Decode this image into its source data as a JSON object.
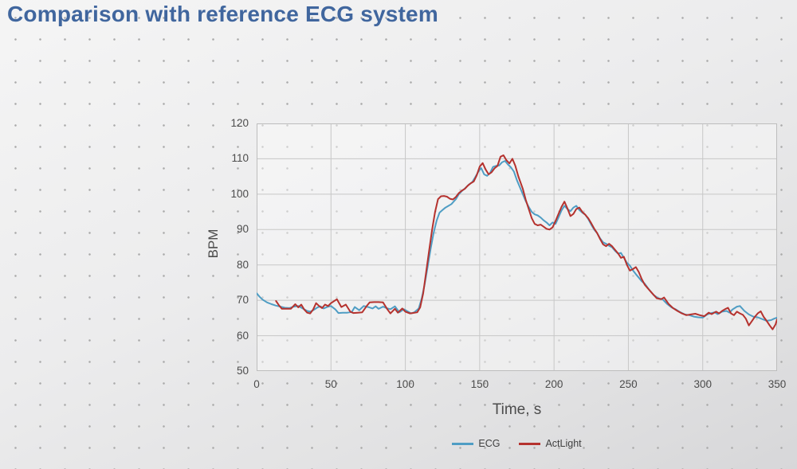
{
  "title": "Comparison with reference ECG system",
  "chart_data": {
    "type": "line",
    "title": "",
    "xlabel": "Time, s",
    "ylabel": "BPM",
    "xlim": [
      0,
      350
    ],
    "ylim": [
      50,
      120
    ],
    "x_ticks": [
      0,
      50,
      100,
      150,
      200,
      250,
      300,
      350
    ],
    "y_ticks": [
      50,
      60,
      70,
      80,
      90,
      100,
      110,
      120
    ],
    "grid": true,
    "legend_position": "bottom",
    "grid_color": "#c7c7c7",
    "series": [
      {
        "name": "ECG",
        "color": "#4f9dc4",
        "points": [
          [
            0,
            72
          ],
          [
            2,
            71
          ],
          [
            4,
            70.2
          ],
          [
            7,
            69.4
          ],
          [
            10,
            68.9
          ],
          [
            13,
            68.5
          ],
          [
            16,
            68.2
          ],
          [
            19,
            67.9
          ],
          [
            22,
            67.8
          ],
          [
            25,
            68.2
          ],
          [
            28,
            68.4
          ],
          [
            31,
            67.7
          ],
          [
            34,
            67
          ],
          [
            36,
            66.8
          ],
          [
            38,
            67.2
          ],
          [
            41,
            68
          ],
          [
            43,
            68.3
          ],
          [
            45,
            67.7
          ],
          [
            48,
            68.2
          ],
          [
            50,
            68.4
          ],
          [
            53,
            67.4
          ],
          [
            55,
            66.4
          ],
          [
            58,
            66.5
          ],
          [
            61,
            66.5
          ],
          [
            64,
            66.7
          ],
          [
            66,
            68.1
          ],
          [
            69,
            67.2
          ],
          [
            72,
            68.4
          ],
          [
            75,
            68.1
          ],
          [
            78,
            67.7
          ],
          [
            80,
            68.3
          ],
          [
            82,
            67.6
          ],
          [
            85,
            68.2
          ],
          [
            88,
            67.7
          ],
          [
            90,
            67.5
          ],
          [
            93,
            68.3
          ],
          [
            96,
            66.6
          ],
          [
            99,
            67.5
          ],
          [
            101,
            67
          ],
          [
            104,
            66.3
          ],
          [
            106,
            66.6
          ],
          [
            109,
            67.7
          ],
          [
            111,
            70.5
          ],
          [
            113,
            74.5
          ],
          [
            115,
            79.5
          ],
          [
            117,
            84.5
          ],
          [
            119,
            89
          ],
          [
            121,
            92.5
          ],
          [
            123,
            94.8
          ],
          [
            125,
            95.5
          ],
          [
            127,
            96.2
          ],
          [
            129,
            96.7
          ],
          [
            131,
            97.2
          ],
          [
            134,
            98.6
          ],
          [
            136,
            100
          ],
          [
            138,
            100.9
          ],
          [
            140,
            101.6
          ],
          [
            143,
            102.8
          ],
          [
            145,
            103.4
          ],
          [
            147,
            104.8
          ],
          [
            149,
            106.3
          ],
          [
            151,
            107.4
          ],
          [
            153,
            105.6
          ],
          [
            155,
            105.2
          ],
          [
            157,
            106
          ],
          [
            159,
            107.7
          ],
          [
            161,
            108
          ],
          [
            163,
            108.1
          ],
          [
            165,
            109
          ],
          [
            167,
            109.4
          ],
          [
            169,
            108.4
          ],
          [
            171,
            107.6
          ],
          [
            173,
            106.4
          ],
          [
            175,
            104
          ],
          [
            178,
            101
          ],
          [
            181,
            98
          ],
          [
            183,
            96.4
          ],
          [
            185,
            95
          ],
          [
            187,
            94.3
          ],
          [
            189,
            94
          ],
          [
            191,
            93.4
          ],
          [
            193,
            92.6
          ],
          [
            195,
            92
          ],
          [
            197,
            91.2
          ],
          [
            199,
            92
          ],
          [
            201,
            91.6
          ],
          [
            203,
            93.4
          ],
          [
            205,
            95.4
          ],
          [
            207,
            96.7
          ],
          [
            209,
            95.8
          ],
          [
            211,
            95.2
          ],
          [
            213,
            96.2
          ],
          [
            215,
            96.7
          ],
          [
            217,
            95.5
          ],
          [
            219,
            94.8
          ],
          [
            221,
            94.2
          ],
          [
            223,
            93
          ],
          [
            225,
            91.4
          ],
          [
            227,
            90
          ],
          [
            229,
            89
          ],
          [
            231,
            87.5
          ],
          [
            233,
            86.4
          ],
          [
            235,
            86
          ],
          [
            237,
            85.4
          ],
          [
            239,
            85
          ],
          [
            241,
            84
          ],
          [
            243,
            83.2
          ],
          [
            245,
            83.4
          ],
          [
            247,
            82
          ],
          [
            249,
            80.6
          ],
          [
            251,
            79.8
          ],
          [
            253,
            78.5
          ],
          [
            255,
            77.4
          ],
          [
            257,
            76.4
          ],
          [
            259,
            75.4
          ],
          [
            261,
            74.7
          ],
          [
            264,
            73
          ],
          [
            267,
            71.5
          ],
          [
            270,
            70.6
          ],
          [
            273,
            70.3
          ],
          [
            276,
            69
          ],
          [
            279,
            68
          ],
          [
            282,
            67.4
          ],
          [
            285,
            66.6
          ],
          [
            288,
            66
          ],
          [
            291,
            65.8
          ],
          [
            294,
            65.4
          ],
          [
            297,
            65.2
          ],
          [
            300,
            65.1
          ],
          [
            303,
            66
          ],
          [
            305,
            66.3
          ],
          [
            308,
            66.6
          ],
          [
            310,
            66.1
          ],
          [
            313,
            66.8
          ],
          [
            316,
            67
          ],
          [
            318,
            66.5
          ],
          [
            320,
            67.4
          ],
          [
            323,
            68.2
          ],
          [
            325,
            68.4
          ],
          [
            328,
            67
          ],
          [
            331,
            66
          ],
          [
            334,
            65.4
          ],
          [
            337,
            65.2
          ],
          [
            340,
            64.7
          ],
          [
            343,
            64.2
          ],
          [
            346,
            64.4
          ],
          [
            348,
            64.8
          ],
          [
            350,
            65.1
          ]
        ]
      },
      {
        "name": "ActLight",
        "color": "#b5322e",
        "points": [
          [
            13,
            69.8
          ],
          [
            15,
            68.6
          ],
          [
            17,
            67.6
          ],
          [
            20,
            67.6
          ],
          [
            23,
            67.6
          ],
          [
            26,
            68.9
          ],
          [
            28,
            68
          ],
          [
            30,
            68.8
          ],
          [
            32,
            67.4
          ],
          [
            34,
            66.5
          ],
          [
            36,
            66.3
          ],
          [
            38,
            67.4
          ],
          [
            40,
            69.2
          ],
          [
            42,
            68.4
          ],
          [
            44,
            67.8
          ],
          [
            46,
            68.8
          ],
          [
            48,
            68.4
          ],
          [
            50,
            69.2
          ],
          [
            54,
            70.3
          ],
          [
            57,
            68.1
          ],
          [
            60,
            68.8
          ],
          [
            63,
            66.8
          ],
          [
            65,
            66.4
          ],
          [
            68,
            66.5
          ],
          [
            71,
            66.6
          ],
          [
            74,
            68.4
          ],
          [
            76,
            69.4
          ],
          [
            79,
            69.5
          ],
          [
            82,
            69.5
          ],
          [
            85,
            69.4
          ],
          [
            88,
            67.4
          ],
          [
            90,
            66.3
          ],
          [
            93,
            67.6
          ],
          [
            95,
            66.5
          ],
          [
            98,
            67.7
          ],
          [
            100,
            66.8
          ],
          [
            103,
            66.3
          ],
          [
            105,
            66.4
          ],
          [
            108,
            66.6
          ],
          [
            110,
            68
          ],
          [
            112,
            72
          ],
          [
            114,
            78
          ],
          [
            116,
            84
          ],
          [
            118,
            90
          ],
          [
            120,
            95
          ],
          [
            122,
            98.6
          ],
          [
            124,
            99.4
          ],
          [
            126,
            99.5
          ],
          [
            128,
            99.3
          ],
          [
            130,
            98.7
          ],
          [
            132,
            98.5
          ],
          [
            134,
            99.2
          ],
          [
            136,
            100.3
          ],
          [
            138,
            101
          ],
          [
            140,
            101.5
          ],
          [
            142,
            102.4
          ],
          [
            144,
            103.1
          ],
          [
            146,
            103.6
          ],
          [
            148,
            105.3
          ],
          [
            150,
            107.8
          ],
          [
            152,
            108.8
          ],
          [
            154,
            107
          ],
          [
            156,
            105.6
          ],
          [
            158,
            106.2
          ],
          [
            160,
            107.3
          ],
          [
            162,
            108
          ],
          [
            164,
            110.6
          ],
          [
            166,
            111
          ],
          [
            168,
            109.6
          ],
          [
            170,
            108.7
          ],
          [
            172,
            110
          ],
          [
            174,
            108
          ],
          [
            176,
            105
          ],
          [
            179,
            101.5
          ],
          [
            181,
            98.4
          ],
          [
            183,
            95.8
          ],
          [
            185,
            93.2
          ],
          [
            187,
            91.6
          ],
          [
            189,
            91.2
          ],
          [
            191,
            91.4
          ],
          [
            193,
            90.8
          ],
          [
            195,
            90.2
          ],
          [
            197,
            90
          ],
          [
            199,
            90.6
          ],
          [
            201,
            92.4
          ],
          [
            203,
            94.4
          ],
          [
            205,
            96.4
          ],
          [
            207,
            97.9
          ],
          [
            209,
            96
          ],
          [
            211,
            93.8
          ],
          [
            213,
            94.4
          ],
          [
            215,
            95.8
          ],
          [
            217,
            96.2
          ],
          [
            219,
            95
          ],
          [
            221,
            94.2
          ],
          [
            223,
            93.2
          ],
          [
            225,
            91.8
          ],
          [
            227,
            90.3
          ],
          [
            229,
            89
          ],
          [
            231,
            87.3
          ],
          [
            233,
            85.8
          ],
          [
            235,
            85.3
          ],
          [
            237,
            86
          ],
          [
            239,
            85.3
          ],
          [
            241,
            84.3
          ],
          [
            243,
            83.3
          ],
          [
            245,
            82
          ],
          [
            247,
            82.3
          ],
          [
            249,
            80
          ],
          [
            251,
            78.4
          ],
          [
            253,
            78.8
          ],
          [
            255,
            79.4
          ],
          [
            257,
            78
          ],
          [
            259,
            76
          ],
          [
            261,
            74.4
          ],
          [
            263,
            73.4
          ],
          [
            266,
            72
          ],
          [
            269,
            70.6
          ],
          [
            272,
            70.3
          ],
          [
            274,
            70.8
          ],
          [
            277,
            69
          ],
          [
            280,
            67.8
          ],
          [
            283,
            67
          ],
          [
            286,
            66.3
          ],
          [
            289,
            65.8
          ],
          [
            292,
            66
          ],
          [
            295,
            66.2
          ],
          [
            298,
            65.8
          ],
          [
            301,
            65.5
          ],
          [
            304,
            66.5
          ],
          [
            306,
            66.1
          ],
          [
            309,
            66.8
          ],
          [
            311,
            66.3
          ],
          [
            313,
            67
          ],
          [
            315,
            67.5
          ],
          [
            317,
            67.9
          ],
          [
            319,
            66.3
          ],
          [
            321,
            65.8
          ],
          [
            323,
            66.8
          ],
          [
            325,
            66.3
          ],
          [
            327,
            65.9
          ],
          [
            329,
            64.8
          ],
          [
            331,
            62.9
          ],
          [
            333,
            64.1
          ],
          [
            335,
            65.3
          ],
          [
            337,
            66.3
          ],
          [
            339,
            66.9
          ],
          [
            341,
            65.3
          ],
          [
            343,
            64.2
          ],
          [
            345,
            62.9
          ],
          [
            347,
            61.8
          ],
          [
            349,
            63.2
          ],
          [
            350,
            64.6
          ]
        ]
      }
    ]
  }
}
